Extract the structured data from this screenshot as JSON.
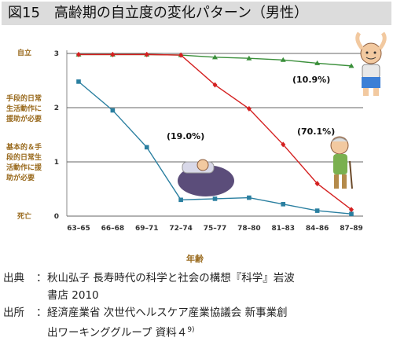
{
  "title": "図15　高齢期の自立度の変化パターン（男性）",
  "chart_data": {
    "type": "line",
    "title": "高齢期の自立度の変化パターン（男性）",
    "xlabel": "年齢",
    "ylabel": "",
    "categories": [
      "63–65",
      "66–68",
      "69–71",
      "72–74",
      "75–77",
      "78–80",
      "81–83",
      "84–86",
      "87–89"
    ],
    "ylim": [
      0,
      3
    ],
    "yticks": [
      0,
      1,
      2,
      3
    ],
    "y_category_labels": [
      {
        "value": 3,
        "label": "自立"
      },
      {
        "value": 2,
        "label_lines": [
          "手段的日常",
          "生活動作に",
          "援助が必要"
        ]
      },
      {
        "value": 1,
        "label_lines": [
          "基本的＆手",
          "段的日常生",
          "活動作に援",
          "助が必要"
        ]
      },
      {
        "value": 0,
        "label": "死亡"
      }
    ],
    "grid": "horizontal",
    "series": [
      {
        "name": "",
        "color": "#3a8f3a",
        "marker": "triangle",
        "values": [
          2.98,
          2.98,
          2.98,
          2.97,
          2.93,
          2.91,
          2.88,
          2.82,
          2.77
        ]
      },
      {
        "name": "",
        "color": "#d42020",
        "marker": "diamond",
        "values": [
          2.98,
          2.98,
          2.98,
          2.97,
          2.42,
          1.98,
          1.32,
          0.6,
          0.12
        ]
      },
      {
        "name": "",
        "color": "#2a7fa0",
        "marker": "square",
        "values": [
          2.48,
          1.95,
          1.27,
          0.3,
          0.32,
          0.34,
          0.22,
          0.1,
          0.04
        ]
      }
    ],
    "annotations": [
      "(10.9%)",
      "(70.1%)",
      "(19.0%)"
    ]
  },
  "footer": {
    "source1_label": "出典",
    "source1_line1": "秋山弘子 長寿時代の科学と社会の構想『科学』岩波",
    "source1_line2": "書店 2010",
    "source2_label": "出所",
    "source2_line1": "経済産業省 次世代ヘルスケア産業協議会 新事業創",
    "source2_line2": "出ワーキンググループ 資料４",
    "source2_ref": "9)"
  }
}
